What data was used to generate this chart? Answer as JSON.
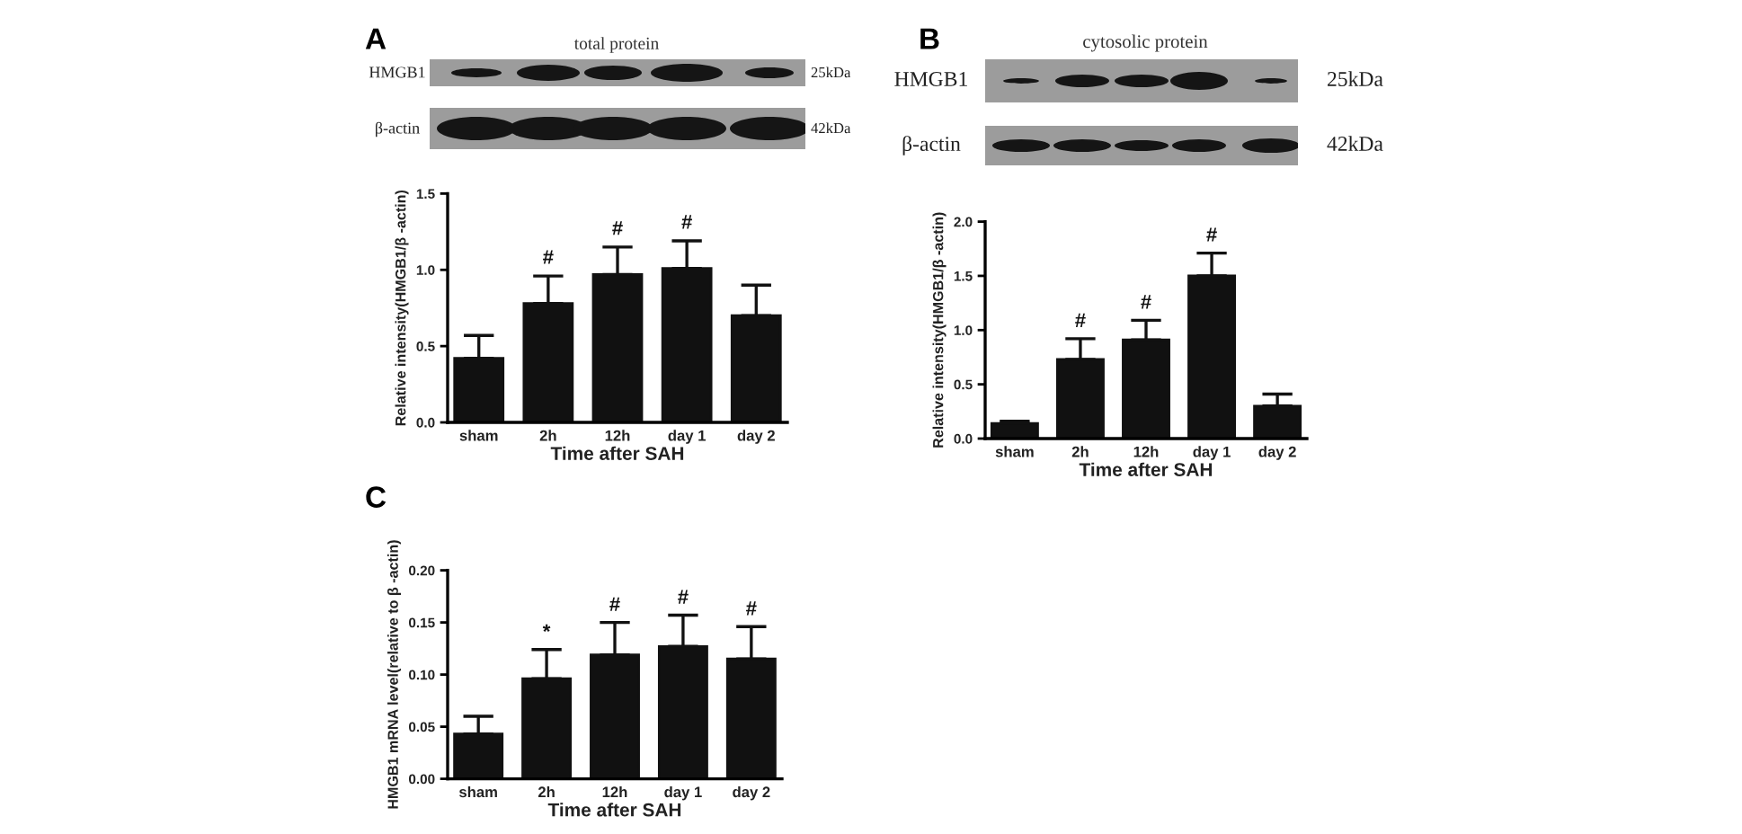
{
  "chart_data": [
    {
      "type": "bar",
      "title": "A",
      "subtitle": "total protein",
      "categories": [
        "sham",
        "2h",
        "12h",
        "day 1",
        "day 2"
      ],
      "values": [
        0.42,
        0.78,
        0.97,
        1.01,
        0.7
      ],
      "errors": [
        [
          0.42,
          0.57
        ],
        [
          0.78,
          0.96
        ],
        [
          0.97,
          1.15
        ],
        [
          1.01,
          1.19
        ],
        [
          0.7,
          0.9
        ]
      ],
      "color": "#111111",
      "xlabel": "Time after SAH",
      "ylabel": "Relative intensity(HMGB1/β -actin)",
      "ylim": [
        0,
        1.5
      ],
      "yticks": [
        {
          "value": 0,
          "label": "0.0"
        },
        0.5,
        {
          "value": 1,
          "label": "1.0"
        },
        1.5
      ],
      "annotations": [
        "HMGB1",
        "25kDa",
        "β-actin",
        "42kDa",
        "#",
        "#",
        "#"
      ]
    },
    {
      "type": "bar",
      "title": "B",
      "subtitle": "cytosolic protein",
      "categories": [
        "sham",
        "2h",
        "12h",
        "day 1",
        "day 2"
      ],
      "values": [
        0.14,
        0.73,
        0.91,
        1.5,
        0.3
      ],
      "errors": [
        [
          0.14,
          0.16
        ],
        [
          0.73,
          0.92
        ],
        [
          0.91,
          1.09
        ],
        [
          1.5,
          1.71
        ],
        [
          0.3,
          0.41
        ]
      ],
      "color": "#111111",
      "xlabel": "Time after SAH",
      "ylabel": "Relative intensity(HMGB1/β -actin)",
      "ylim": [
        0,
        2
      ],
      "yticks": [
        {
          "value": 0,
          "label": "0.0"
        },
        0.5,
        {
          "value": 1,
          "label": "1.0"
        },
        1.5,
        {
          "value": 2,
          "label": "2.0"
        }
      ],
      "annotations": [
        "HMGB1",
        "25kDa",
        "β-actin",
        "42kDa",
        "#",
        "#",
        "#"
      ]
    },
    {
      "type": "bar",
      "title": "C",
      "categories": [
        "sham",
        "2h",
        "12h",
        "day 1",
        "day 2"
      ],
      "values": [
        0.043,
        0.096,
        0.119,
        0.127,
        0.115
      ],
      "errors": [
        [
          0.043,
          0.06
        ],
        [
          0.096,
          0.124
        ],
        [
          0.119,
          0.15
        ],
        [
          0.127,
          0.157
        ],
        [
          0.115,
          0.146
        ]
      ],
      "color": "#111111",
      "xlabel": "Time after SAH",
      "ylabel": "HMGB1 mRNA level(relative to β -actin)",
      "ylim": [
        0,
        0.2
      ],
      "yticks": [
        {
          "value": 0,
          "label": "0.00"
        },
        0.05,
        {
          "value": 0.1,
          "label": "0.10"
        },
        0.15,
        {
          "value": 0.2,
          "label": "0.20"
        }
      ],
      "annotations": [
        "*",
        "#",
        "#",
        "#"
      ]
    }
  ]
}
